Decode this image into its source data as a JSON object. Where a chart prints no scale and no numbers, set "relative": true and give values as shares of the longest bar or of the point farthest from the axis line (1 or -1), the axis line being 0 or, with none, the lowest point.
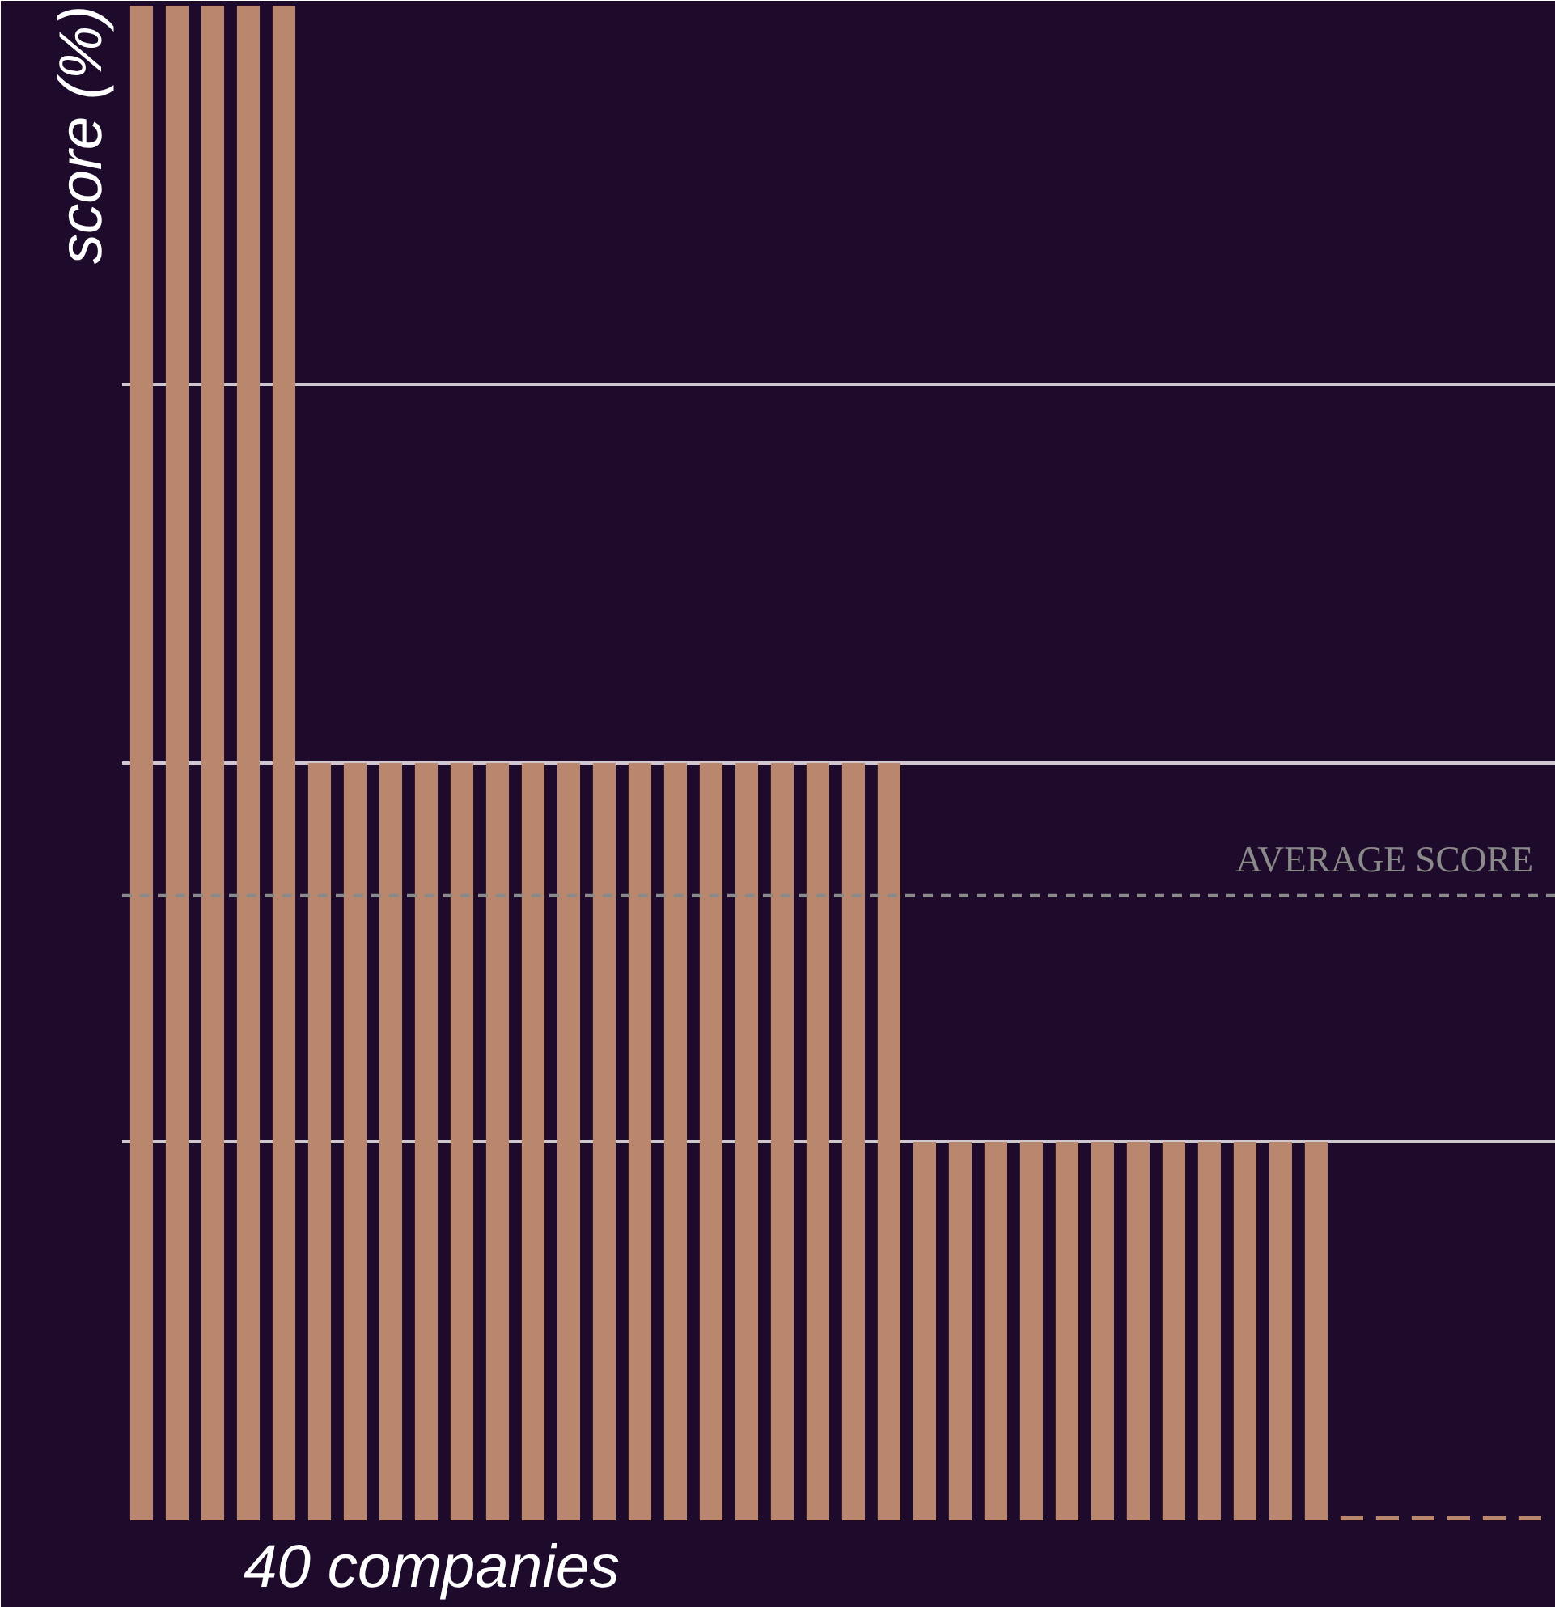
{
  "chart_data": {
    "type": "bar",
    "relative": true,
    "xlabel": "40 companies",
    "ylabel": "score (%)",
    "categories": [
      null,
      null,
      null,
      null,
      null,
      null,
      null,
      null,
      null,
      null,
      null,
      null,
      null,
      null,
      null,
      null,
      null,
      null,
      null,
      null,
      null,
      null,
      null,
      null,
      null,
      null,
      null,
      null,
      null,
      null,
      null,
      null,
      null,
      null,
      null,
      null,
      null,
      null,
      null,
      null
    ],
    "values": [
      1,
      1,
      1,
      1,
      1,
      0.5,
      0.5,
      0.5,
      0.5,
      0.5,
      0.5,
      0.5,
      0.5,
      0.5,
      0.5,
      0.5,
      0.5,
      0.5,
      0.5,
      0.5,
      0.5,
      0.5,
      0.25,
      0.25,
      0.25,
      0.25,
      0.25,
      0.25,
      0.25,
      0.25,
      0.25,
      0.25,
      0.25,
      0.25,
      0.003,
      0.003,
      0.003,
      0.003,
      0.003,
      0.003
    ],
    "color": "#b9876e",
    "grid": "y",
    "ref_lines": [
      {
        "axis": "y",
        "value": 0.4125,
        "label": "AVERAGE SCORE",
        "color": "#8a8a8a",
        "line_style": "dashed"
      }
    ]
  }
}
